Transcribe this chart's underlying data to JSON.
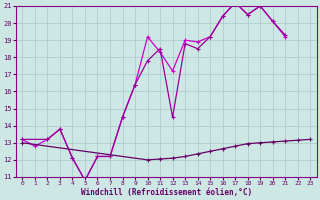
{
  "xlabel": "Windchill (Refroidissement éolien,°C)",
  "xlim": [
    -0.5,
    23.5
  ],
  "ylim": [
    11,
    21
  ],
  "yticks": [
    11,
    12,
    13,
    14,
    15,
    16,
    17,
    18,
    19,
    20,
    21
  ],
  "xticks": [
    0,
    1,
    2,
    3,
    4,
    5,
    6,
    7,
    8,
    9,
    10,
    11,
    12,
    13,
    14,
    15,
    16,
    17,
    18,
    19,
    20,
    21,
    22,
    23
  ],
  "bg_color": "#cde8e4",
  "grid_color": "#aac8c8",
  "line1_color": "#cc00cc",
  "line2_color": "#990099",
  "line3_color": "#660066",
  "line1_x": [
    0,
    1,
    2,
    3,
    4,
    5,
    6,
    7,
    8,
    9,
    10,
    11,
    12,
    13,
    14,
    15,
    16,
    17,
    18,
    19,
    20,
    21,
    22,
    23
  ],
  "line1_y": [
    13.2,
    12.8,
    13.2,
    13.8,
    12.1,
    10.8,
    12.2,
    12.2,
    14.5,
    16.4,
    19.2,
    18.3,
    17.2,
    19.0,
    18.9,
    19.2,
    20.4,
    21.2,
    20.5,
    21.0,
    20.1,
    19.2,
    null,
    null
  ],
  "line2_x": [
    0,
    2,
    3,
    4,
    5,
    6,
    7,
    8,
    9,
    10,
    11,
    12,
    13,
    14,
    15,
    16,
    17,
    18,
    19,
    20,
    21,
    22,
    23
  ],
  "line2_y": [
    13.2,
    13.2,
    13.8,
    12.1,
    10.8,
    12.2,
    12.2,
    14.5,
    16.4,
    17.8,
    18.5,
    14.5,
    18.8,
    18.5,
    19.2,
    20.4,
    21.2,
    20.5,
    21.0,
    20.1,
    19.3,
    null,
    null
  ],
  "line3_x": [
    0,
    10,
    11,
    12,
    13,
    14,
    15,
    16,
    17,
    18,
    19,
    20,
    21,
    22,
    23
  ],
  "line3_y": [
    13.0,
    12.0,
    12.05,
    12.1,
    12.2,
    12.35,
    12.5,
    12.65,
    12.8,
    12.95,
    13.0,
    13.05,
    13.1,
    13.15,
    13.2
  ]
}
